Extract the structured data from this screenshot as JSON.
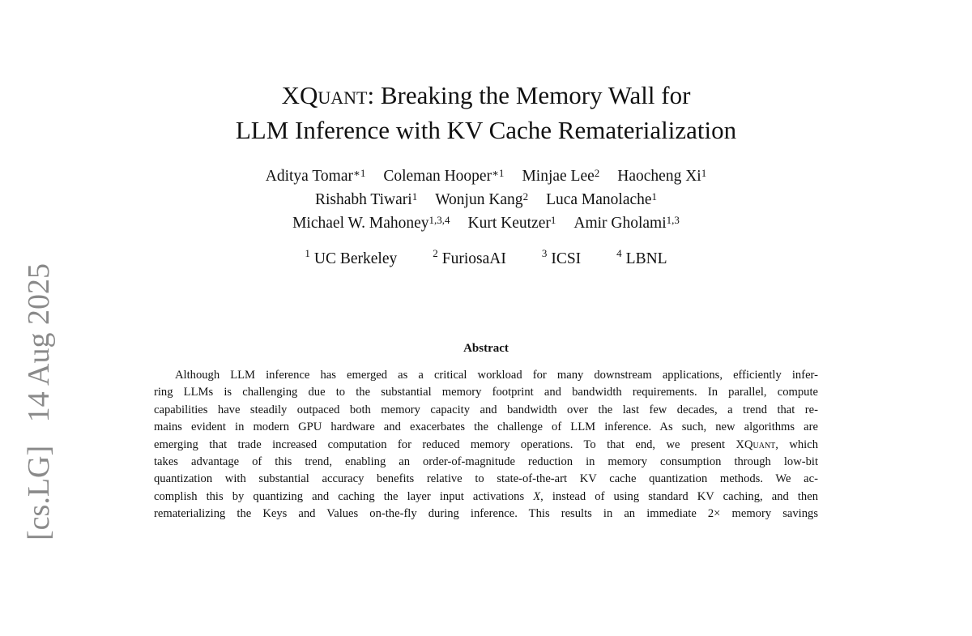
{
  "side_stamp": "[cs.LG]   14 Aug 2025",
  "title": {
    "line1_pre": "XQuant",
    "line1_post": ": Breaking the Memory Wall for",
    "line2": "LLM Inference with KV Cache Rematerialization"
  },
  "authors": [
    [
      {
        "name": "Aditya Tomar",
        "sup": "∗1"
      },
      {
        "name": "Coleman Hooper",
        "sup": "∗1"
      },
      {
        "name": "Minjae Lee",
        "sup": "2"
      },
      {
        "name": "Haocheng Xi",
        "sup": "1"
      }
    ],
    [
      {
        "name": "Rishabh Tiwari",
        "sup": "1"
      },
      {
        "name": "Wonjun Kang",
        "sup": "2"
      },
      {
        "name": "Luca Manolache",
        "sup": "1"
      }
    ],
    [
      {
        "name": "Michael W. Mahoney",
        "sup": "1,3,4"
      },
      {
        "name": "Kurt Keutzer",
        "sup": "1"
      },
      {
        "name": "Amir Gholami",
        "sup": "1,3"
      }
    ]
  ],
  "affiliations": [
    {
      "sup": "1",
      "name": "UC Berkeley"
    },
    {
      "sup": "2",
      "name": "FuriosaAI"
    },
    {
      "sup": "3",
      "name": "ICSI"
    },
    {
      "sup": "4",
      "name": "LBNL"
    }
  ],
  "abstract": {
    "heading": "Abstract",
    "lines": [
      "Although LLM inference has emerged as a critical workload for many downstream applications, efficiently infer-",
      "ring LLMs is challenging due to the substantial memory footprint and bandwidth requirements. In parallel, compute",
      "capabilities have steadily outpaced both memory capacity and bandwidth over the last few decades, a trend that re-",
      "mains evident in modern GPU hardware and exacerbates the challenge of LLM inference. As such, new algorithms are",
      "emerging that trade increased computation for reduced memory operations. To that end, we present ",
      "takes advantage of this trend, enabling an order-of-magnitude reduction in memory consumption through low-bit",
      "quantization with substantial accuracy benefits relative to state-of-the-art KV cache quantization methods. We ac-",
      "complish this by quantizing and caching the layer input activations ",
      "rematerializing the Keys and Values on-the-fly during inference. This results in an immediate 2× memory savings"
    ],
    "line5_name": "XQuant",
    "line5_tail": ", which",
    "line8_var": "X",
    "line8_tail": ", instead of using standard KV caching, and then"
  }
}
